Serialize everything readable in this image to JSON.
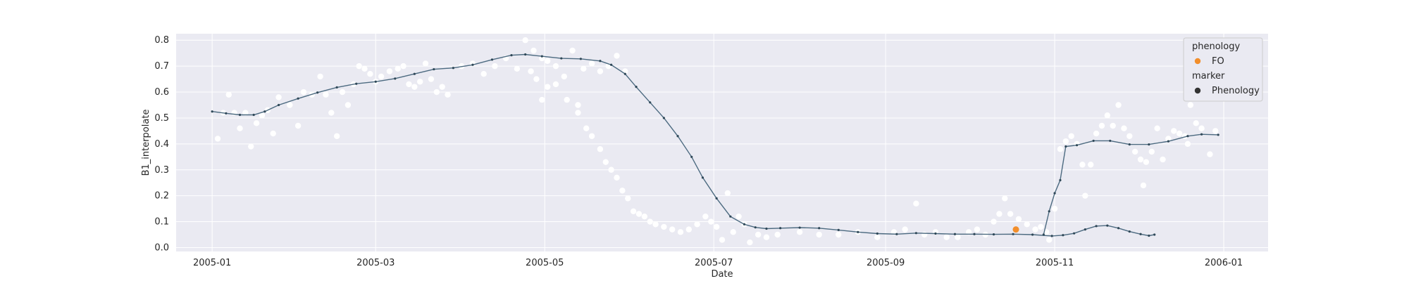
{
  "chart_data": {
    "type": "line",
    "xlabel": "Date",
    "ylabel": "B1_interpolate",
    "x_tick_labels": [
      "2005-01",
      "2005-03",
      "2005-05",
      "2005-07",
      "2005-09",
      "2005-11",
      "2006-01"
    ],
    "x_tick_dates": [
      "2005-01-01",
      "2005-03-01",
      "2005-05-01",
      "2005-07-01",
      "2005-09-01",
      "2005-11-01",
      "2006-01-01"
    ],
    "y_tick_labels": [
      "0.0",
      "0.1",
      "0.2",
      "0.3",
      "0.4",
      "0.5",
      "0.6",
      "0.7",
      "0.8"
    ],
    "xlim": [
      "2004-12-19",
      "2006-01-17"
    ],
    "ylim": [
      -0.015,
      0.825
    ],
    "grid": true,
    "background_color": "#eaeaf2",
    "series": [
      {
        "kind": "scatter-observations",
        "color": "#ffffff",
        "points": [
          [
            "2005-01-03",
            0.42
          ],
          [
            "2005-01-05",
            0.52
          ],
          [
            "2005-01-07",
            0.59
          ],
          [
            "2005-01-09",
            0.52
          ],
          [
            "2005-01-11",
            0.46
          ],
          [
            "2005-01-13",
            0.52
          ],
          [
            "2005-01-15",
            0.39
          ],
          [
            "2005-01-17",
            0.48
          ],
          [
            "2005-01-19",
            0.51
          ],
          [
            "2005-01-21",
            0.53
          ],
          [
            "2005-01-23",
            0.44
          ],
          [
            "2005-01-25",
            0.58
          ],
          [
            "2005-01-29",
            0.55
          ],
          [
            "2005-02-01",
            0.47
          ],
          [
            "2005-02-03",
            0.6
          ],
          [
            "2005-02-06",
            0.59
          ],
          [
            "2005-02-09",
            0.66
          ],
          [
            "2005-02-11",
            0.59
          ],
          [
            "2005-02-13",
            0.52
          ],
          [
            "2005-02-15",
            0.43
          ],
          [
            "2005-02-17",
            0.6
          ],
          [
            "2005-02-19",
            0.55
          ],
          [
            "2005-02-21",
            0.63
          ],
          [
            "2005-02-23",
            0.7
          ],
          [
            "2005-02-25",
            0.69
          ],
          [
            "2005-02-27",
            0.67
          ],
          [
            "2005-03-01",
            0.64
          ],
          [
            "2005-03-03",
            0.66
          ],
          [
            "2005-03-06",
            0.68
          ],
          [
            "2005-03-09",
            0.69
          ],
          [
            "2005-03-11",
            0.7
          ],
          [
            "2005-03-13",
            0.63
          ],
          [
            "2005-03-15",
            0.62
          ],
          [
            "2005-03-17",
            0.64
          ],
          [
            "2005-03-19",
            0.71
          ],
          [
            "2005-03-21",
            0.65
          ],
          [
            "2005-03-23",
            0.6
          ],
          [
            "2005-03-25",
            0.62
          ],
          [
            "2005-03-27",
            0.59
          ],
          [
            "2005-04-01",
            0.7
          ],
          [
            "2005-04-05",
            0.71
          ],
          [
            "2005-04-09",
            0.67
          ],
          [
            "2005-04-13",
            0.7
          ],
          [
            "2005-04-17",
            0.73
          ],
          [
            "2005-04-21",
            0.69
          ],
          [
            "2005-04-24",
            0.8
          ],
          [
            "2005-04-27",
            0.76
          ],
          [
            "2005-04-30",
            0.73
          ],
          [
            "2005-05-02",
            0.72
          ],
          [
            "2005-05-05",
            0.7
          ],
          [
            "2005-05-08",
            0.66
          ],
          [
            "2005-05-11",
            0.76
          ],
          [
            "2005-05-13",
            0.55
          ],
          [
            "2005-05-15",
            0.69
          ],
          [
            "2005-05-18",
            0.71
          ],
          [
            "2005-05-21",
            0.68
          ],
          [
            "2005-05-24",
            0.7
          ],
          [
            "2005-05-27",
            0.74
          ],
          [
            "2005-05-30",
            0.68
          ],
          [
            "2005-04-26",
            0.68
          ],
          [
            "2005-04-28",
            0.65
          ],
          [
            "2005-04-30",
            0.57
          ],
          [
            "2005-05-02",
            0.62
          ],
          [
            "2005-05-05",
            0.63
          ],
          [
            "2005-05-09",
            0.57
          ],
          [
            "2005-05-13",
            0.52
          ],
          [
            "2005-05-16",
            0.46
          ],
          [
            "2005-05-18",
            0.43
          ],
          [
            "2005-05-21",
            0.38
          ],
          [
            "2005-05-23",
            0.33
          ],
          [
            "2005-05-25",
            0.3
          ],
          [
            "2005-05-27",
            0.27
          ],
          [
            "2005-05-29",
            0.22
          ],
          [
            "2005-05-31",
            0.19
          ],
          [
            "2005-06-02",
            0.14
          ],
          [
            "2005-06-04",
            0.13
          ],
          [
            "2005-06-06",
            0.12
          ],
          [
            "2005-06-08",
            0.1
          ],
          [
            "2005-06-10",
            0.09
          ],
          [
            "2005-06-13",
            0.08
          ],
          [
            "2005-06-16",
            0.07
          ],
          [
            "2005-06-19",
            0.06
          ],
          [
            "2005-06-22",
            0.07
          ],
          [
            "2005-06-25",
            0.09
          ],
          [
            "2005-06-28",
            0.12
          ],
          [
            "2005-06-30",
            0.1
          ],
          [
            "2005-07-02",
            0.08
          ],
          [
            "2005-07-04",
            0.03
          ],
          [
            "2005-07-06",
            0.21
          ],
          [
            "2005-07-08",
            0.06
          ],
          [
            "2005-07-10",
            0.12
          ],
          [
            "2005-07-12",
            0.09
          ],
          [
            "2005-07-14",
            0.02
          ],
          [
            "2005-07-17",
            0.05
          ],
          [
            "2005-07-20",
            0.04
          ],
          [
            "2005-07-24",
            0.05
          ],
          [
            "2005-08-01",
            0.06
          ],
          [
            "2005-08-08",
            0.05
          ],
          [
            "2005-08-15",
            0.05
          ],
          [
            "2005-08-22",
            0.06
          ],
          [
            "2005-08-29",
            0.04
          ],
          [
            "2005-09-04",
            0.06
          ],
          [
            "2005-09-08",
            0.07
          ],
          [
            "2005-09-12",
            0.17
          ],
          [
            "2005-09-15",
            0.05
          ],
          [
            "2005-09-19",
            0.06
          ],
          [
            "2005-09-23",
            0.04
          ],
          [
            "2005-09-27",
            0.04
          ],
          [
            "2005-10-01",
            0.06
          ],
          [
            "2005-10-04",
            0.07
          ],
          [
            "2005-10-07",
            0.05
          ],
          [
            "2005-10-10",
            0.1
          ],
          [
            "2005-10-12",
            0.13
          ],
          [
            "2005-10-14",
            0.19
          ],
          [
            "2005-10-16",
            0.13
          ],
          [
            "2005-10-19",
            0.11
          ],
          [
            "2005-10-22",
            0.09
          ],
          [
            "2005-10-25",
            0.07
          ],
          [
            "2005-10-27",
            0.08
          ],
          [
            "2005-10-29",
            0.06
          ],
          [
            "2005-10-30",
            0.03
          ],
          [
            "2005-11-01",
            0.15
          ],
          [
            "2005-11-03",
            0.38
          ],
          [
            "2005-11-05",
            0.41
          ],
          [
            "2005-11-07",
            0.43
          ],
          [
            "2005-11-09",
            0.4
          ],
          [
            "2005-11-11",
            0.32
          ],
          [
            "2005-11-12",
            0.2
          ],
          [
            "2005-11-14",
            0.32
          ],
          [
            "2005-11-16",
            0.44
          ],
          [
            "2005-11-18",
            0.47
          ],
          [
            "2005-11-20",
            0.51
          ],
          [
            "2005-11-22",
            0.47
          ],
          [
            "2005-11-24",
            0.55
          ],
          [
            "2005-11-26",
            0.46
          ],
          [
            "2005-11-28",
            0.43
          ],
          [
            "2005-11-30",
            0.37
          ],
          [
            "2005-12-02",
            0.34
          ],
          [
            "2005-12-03",
            0.24
          ],
          [
            "2005-12-04",
            0.33
          ],
          [
            "2005-12-06",
            0.37
          ],
          [
            "2005-12-08",
            0.46
          ],
          [
            "2005-12-10",
            0.34
          ],
          [
            "2005-12-12",
            0.42
          ],
          [
            "2005-12-14",
            0.45
          ],
          [
            "2005-12-16",
            0.44
          ],
          [
            "2005-12-18",
            0.43
          ],
          [
            "2005-12-19",
            0.4
          ],
          [
            "2005-12-20",
            0.55
          ],
          [
            "2005-12-22",
            0.48
          ],
          [
            "2005-12-24",
            0.46
          ],
          [
            "2005-12-27",
            0.36
          ],
          [
            "2005-12-29",
            0.45
          ]
        ]
      },
      {
        "kind": "interpolated-line",
        "color": "#4c6a80",
        "points": [
          [
            "2005-01-01",
            0.525
          ],
          [
            "2005-01-06",
            0.518
          ],
          [
            "2005-01-11",
            0.512
          ],
          [
            "2005-01-16",
            0.512
          ],
          [
            "2005-01-20",
            0.525
          ],
          [
            "2005-01-25",
            0.55
          ],
          [
            "2005-02-01",
            0.575
          ],
          [
            "2005-02-08",
            0.598
          ],
          [
            "2005-02-15",
            0.618
          ],
          [
            "2005-02-22",
            0.632
          ],
          [
            "2005-03-01",
            0.64
          ],
          [
            "2005-03-08",
            0.652
          ],
          [
            "2005-03-15",
            0.67
          ],
          [
            "2005-03-22",
            0.688
          ],
          [
            "2005-03-29",
            0.693
          ],
          [
            "2005-04-05",
            0.705
          ],
          [
            "2005-04-12",
            0.725
          ],
          [
            "2005-04-19",
            0.742
          ],
          [
            "2005-04-24",
            0.745
          ],
          [
            "2005-04-30",
            0.738
          ],
          [
            "2005-05-07",
            0.73
          ],
          [
            "2005-05-14",
            0.728
          ],
          [
            "2005-05-21",
            0.72
          ],
          [
            "2005-05-25",
            0.705
          ],
          [
            "2005-05-30",
            0.67
          ],
          [
            "2005-06-03",
            0.62
          ],
          [
            "2005-06-08",
            0.56
          ],
          [
            "2005-06-13",
            0.5
          ],
          [
            "2005-06-18",
            0.43
          ],
          [
            "2005-06-23",
            0.35
          ],
          [
            "2005-06-27",
            0.27
          ],
          [
            "2005-07-02",
            0.19
          ],
          [
            "2005-07-07",
            0.12
          ],
          [
            "2005-07-12",
            0.09
          ],
          [
            "2005-07-16",
            0.078
          ],
          [
            "2005-07-20",
            0.073
          ],
          [
            "2005-07-25",
            0.075
          ],
          [
            "2005-08-01",
            0.077
          ],
          [
            "2005-08-08",
            0.075
          ],
          [
            "2005-08-15",
            0.068
          ],
          [
            "2005-08-22",
            0.06
          ],
          [
            "2005-08-29",
            0.054
          ],
          [
            "2005-09-05",
            0.052
          ],
          [
            "2005-09-12",
            0.056
          ],
          [
            "2005-09-19",
            0.054
          ],
          [
            "2005-09-26",
            0.052
          ],
          [
            "2005-10-03",
            0.052
          ],
          [
            "2005-10-10",
            0.051
          ],
          [
            "2005-10-17",
            0.052
          ],
          [
            "2005-10-24",
            0.05
          ],
          [
            "2005-10-31",
            0.045
          ],
          [
            "2005-11-04",
            0.048
          ],
          [
            "2005-11-08",
            0.055
          ],
          [
            "2005-11-12",
            0.07
          ],
          [
            "2005-11-16",
            0.083
          ],
          [
            "2005-11-20",
            0.085
          ],
          [
            "2005-11-24",
            0.075
          ],
          [
            "2005-11-28",
            0.062
          ],
          [
            "2005-12-02",
            0.052
          ],
          [
            "2005-12-05",
            0.046
          ],
          [
            "2005-12-07",
            0.05
          ]
        ]
      },
      {
        "kind": "interpolated-line-tail",
        "color": "#4c6a80",
        "points": [
          [
            "2005-10-28",
            0.05
          ],
          [
            "2005-10-30",
            0.14
          ],
          [
            "2005-11-01",
            0.21
          ],
          [
            "2005-11-03",
            0.26
          ],
          [
            "2005-11-05",
            0.39
          ],
          [
            "2005-11-09",
            0.395
          ],
          [
            "2005-11-15",
            0.412
          ],
          [
            "2005-11-21",
            0.412
          ],
          [
            "2005-11-28",
            0.398
          ],
          [
            "2005-12-05",
            0.398
          ],
          [
            "2005-12-12",
            0.41
          ],
          [
            "2005-12-19",
            0.43
          ],
          [
            "2005-12-24",
            0.437
          ],
          [
            "2005-12-30",
            0.435
          ]
        ]
      }
    ],
    "phenology_point": {
      "date": "2005-10-18",
      "value": 0.07,
      "color": "#f28e2b"
    },
    "legend": {
      "placement": "top-right",
      "items": [
        {
          "type": "title",
          "text": "phenology"
        },
        {
          "type": "entry",
          "text": "FO",
          "color": "#f28e2b"
        },
        {
          "type": "title",
          "text": "marker"
        },
        {
          "type": "entry",
          "text": "Phenology",
          "color": "#333333"
        }
      ]
    }
  }
}
